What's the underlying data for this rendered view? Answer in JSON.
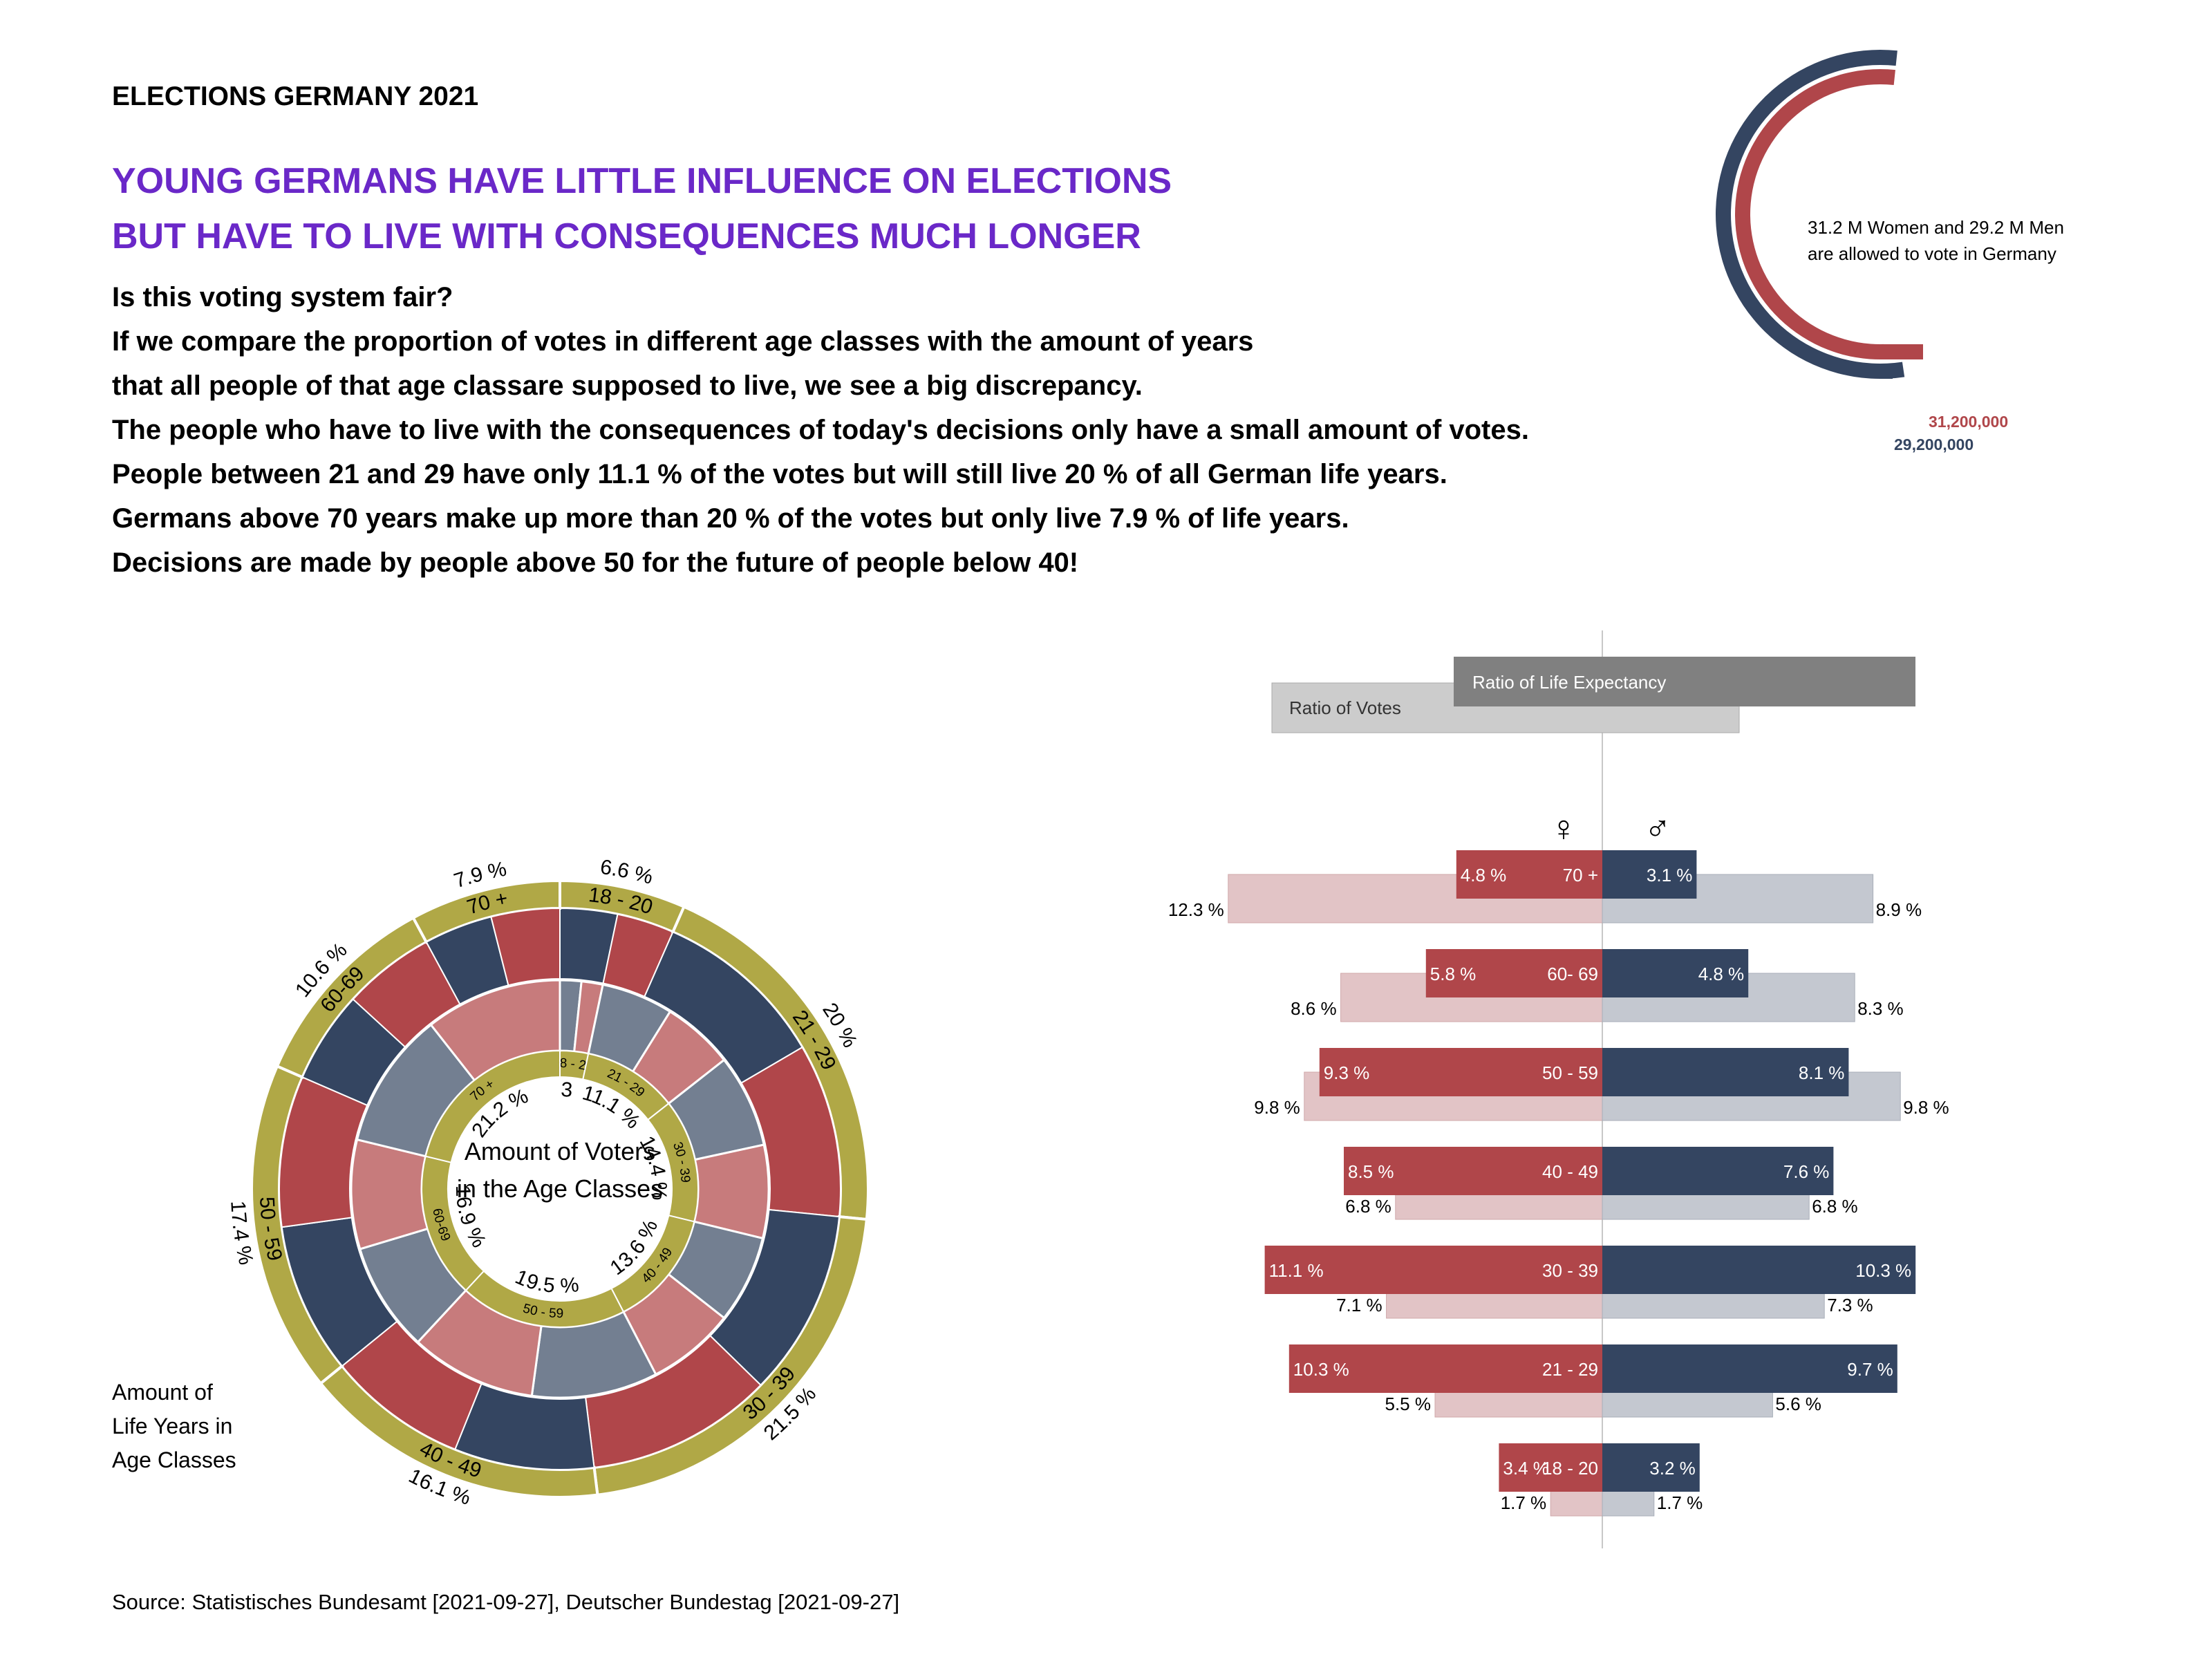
{
  "header": {
    "supertitle": "ELECTIONS GERMANY 2021",
    "headline": [
      "YOUNG GERMANS HAVE LITTLE INFLUENCE ON ELECTIONS",
      "BUT HAVE TO LIVE WITH CONSEQUENCES MUCH LONGER"
    ],
    "body": [
      "Is this voting system fair?",
      "If we compare the proportion of votes in different age classes with the amount of years",
      "that all people of that age classare supposed to live, we see a big discrepancy.",
      "The people who have to live with the consequences of today's decisions only have a small amount of votes.",
      "People between 21 and 29 have only 11.1 % of the votes but will still live 20 % of all German life years.",
      "Germans above 70 years make up more than 20 % of the votes but only live 7.9 % of life years.",
      "Decisions are made by people above 50 for the future of people below 40!"
    ]
  },
  "source": "Source: Statistisches Bundesamt [2021-09-27], Deutscher Bundestag [2021-09-27]",
  "colors": {
    "female": "#b0464a",
    "male": "#344561",
    "female_light": "#e2c4c6",
    "male_light": "#c4c8d0",
    "olive": "#b0a846",
    "inner_female": "#c77b7c",
    "inner_male": "#737f91",
    "headline": "#6a28c8",
    "legend_dark": "#808080",
    "legend_light": "#cccccc"
  },
  "chart_data": [
    {
      "type": "pie",
      "name": "semicircle-voters-by-sex",
      "annotation": [
        "31.2 M Women and 29.2 M Men",
        "are allowed to vote in Germany"
      ],
      "series": [
        {
          "name": "Women",
          "value": 31200000,
          "label": "31,200,000"
        },
        {
          "name": "Men",
          "value": 29200000,
          "label": "29,200,000"
        }
      ]
    },
    {
      "type": "pie",
      "name": "age-donut",
      "center_title": [
        "Amount of Voters",
        "in the Age Classes"
      ],
      "outer_caption": [
        "Amount of",
        "Life Years in",
        "Age Classes"
      ],
      "outer_ring": [
        {
          "category": "18 - 20",
          "percent_label": "6.6 %",
          "value": 6.6
        },
        {
          "category": "21 - 29",
          "percent_label": "20 %",
          "value": 20.0
        },
        {
          "category": "30 - 39",
          "percent_label": "21.5 %",
          "value": 21.5
        },
        {
          "category": "40 - 49",
          "percent_label": "16.1 %",
          "value": 16.1
        },
        {
          "category": "50 - 59",
          "percent_label": "17.4 %",
          "value": 17.4
        },
        {
          "category": "60-69",
          "percent_label": "10.6 %",
          "value": 10.6
        },
        {
          "category": "70 +",
          "percent_label": "7.9 %",
          "value": 7.9
        }
      ],
      "inner_ring": [
        {
          "category": "18 - 20",
          "percent_label": "3.3 %",
          "value": 3.3
        },
        {
          "category": "21 - 29",
          "percent_label": "11.1 %",
          "value": 11.1
        },
        {
          "category": "30 - 39",
          "percent_label": "14.4 %",
          "value": 14.4
        },
        {
          "category": "40 - 49",
          "percent_label": "13.6 %",
          "value": 13.6
        },
        {
          "category": "50 - 59",
          "percent_label": "19.5 %",
          "value": 19.5
        },
        {
          "category": "60-69",
          "percent_label": "16.9 %",
          "value": 16.9
        },
        {
          "category": "70 +",
          "percent_label": "21.2 %",
          "value": 21.2
        }
      ]
    },
    {
      "type": "bar",
      "name": "age-pyramid",
      "legend": {
        "votes": "Ratio of Votes",
        "life": "Ratio of Life Expectancy"
      },
      "symbols": {
        "female": "♀",
        "male": "♂"
      },
      "xlim": [
        -13,
        13
      ],
      "rows": [
        {
          "category": "70 +",
          "female_votes": 4.8,
          "male_votes": 3.1,
          "female_life": 12.3,
          "male_life": 8.9,
          "fv_label": "4.8 %",
          "mv_label": "3.1 %",
          "fl_label": "12.3 %",
          "ml_label": "8.9 %"
        },
        {
          "category": "60- 69",
          "female_votes": 5.8,
          "male_votes": 4.8,
          "female_life": 8.6,
          "male_life": 8.3,
          "fv_label": "5.8 %",
          "mv_label": "4.8 %",
          "fl_label": "8.6 %",
          "ml_label": "8.3 %"
        },
        {
          "category": "50 - 59",
          "female_votes": 9.3,
          "male_votes": 8.1,
          "female_life": 9.8,
          "male_life": 9.8,
          "fv_label": "9.3 %",
          "mv_label": "8.1 %",
          "fl_label": "9.8 %",
          "ml_label": "9.8 %"
        },
        {
          "category": "40 - 49",
          "female_votes": 8.5,
          "male_votes": 7.6,
          "female_life": 6.8,
          "male_life": 6.8,
          "fv_label": "8.5 %",
          "mv_label": "7.6 %",
          "fl_label": "6.8 %",
          "ml_label": "6.8 %"
        },
        {
          "category": "30 - 39",
          "female_votes": 11.1,
          "male_votes": 10.3,
          "female_life": 7.1,
          "male_life": 7.3,
          "fv_label": "11.1 %",
          "mv_label": "10.3 %",
          "fl_label": "7.1 %",
          "ml_label": "7.3 %"
        },
        {
          "category": "21 - 29",
          "female_votes": 10.3,
          "male_votes": 9.7,
          "female_life": 5.5,
          "male_life": 5.6,
          "fv_label": "10.3 %",
          "mv_label": "9.7 %",
          "fl_label": "5.5 %",
          "ml_label": "5.6 %"
        },
        {
          "category": "18 - 20",
          "female_votes": 3.4,
          "male_votes": 3.2,
          "female_life": 1.7,
          "male_life": 1.7,
          "fv_label": "3.4 %",
          "mv_label": "3.2 %",
          "fl_label": "1.7 %",
          "ml_label": "1.7 %"
        }
      ]
    }
  ]
}
